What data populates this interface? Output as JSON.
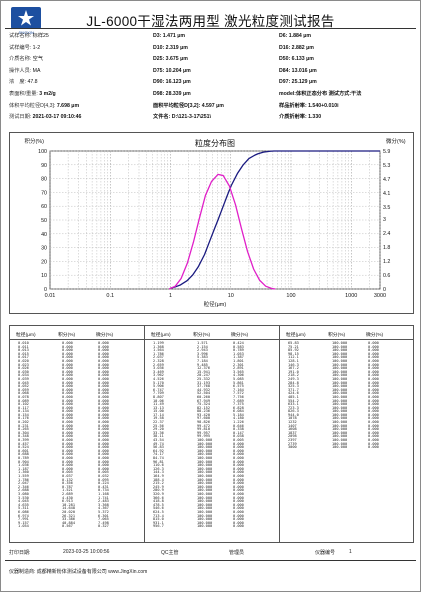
{
  "header": {
    "logo_text": "JINGXIN",
    "title": "JL-6000干湿法两用型 激光粒度测试报告"
  },
  "info": {
    "left": [
      {
        "key": "试样名称:",
        "value": "标样25"
      },
      {
        "key": "试样编号:",
        "value": "1-2"
      },
      {
        "key": "介质名称:",
        "value": "空气"
      },
      {
        "key": "操作人员:",
        "value": "MA"
      },
      {
        "key": "浓　度:",
        "value": "47.8"
      },
      {
        "key": "表面积/重量:",
        "value": "3 m2/g"
      },
      {
        "key": "体积平均粒径D[4,3]:",
        "value": "7.698 μm"
      },
      {
        "key": "测试日期:",
        "value": "2021-03-17 09:10:46"
      }
    ],
    "middle": [
      "D3: 1.471 μm",
      "D10: 2.319 μm",
      "D25: 3.675 μm",
      "D75: 10.204 μm",
      "D90: 16.123 μm",
      "D98: 28.339 μm",
      "面积平均粒径D[3,2]: 4.597 μm",
      "文件名:  D:\\121-3-17\\251\\"
    ],
    "right": [
      "D6: 1.884 μm",
      "D16: 2.882 μm",
      "D50: 6.133 μm",
      "D84: 13.016 μm",
      "D97: 25.129 μm",
      "model:体积正态分布 测试方式:干法",
      "样品折射率: 1.540+0.010i",
      "介质折射率: 1.330"
    ]
  },
  "chart_data": {
    "type": "line",
    "title": "粒度分布图",
    "xlabel": "粒径(μm)",
    "ylabel_left": "积分(%)",
    "ylabel_right": "微分(%)",
    "x_scale": "log",
    "xlim": [
      0.01,
      3000
    ],
    "x_ticks": [
      "0.01",
      "0.1",
      "1",
      "10",
      "100",
      "1000",
      "3000"
    ],
    "y_left_lim": [
      0,
      100
    ],
    "y_left_ticks": [
      "0",
      "10",
      "20",
      "30",
      "40",
      "50",
      "60",
      "70",
      "80",
      "90",
      "100"
    ],
    "y_right_lim": [
      0,
      5.9
    ],
    "y_right_ticks": [
      "0",
      "0.6",
      "1.2",
      "1.8",
      "2.4",
      "3",
      "3.5",
      "4.1",
      "4.7",
      "5.3",
      "5.9"
    ],
    "series": [
      {
        "name": "积分",
        "color": "#1a1a80",
        "x": [
          1.0,
          1.2,
          1.471,
          1.884,
          2.319,
          2.882,
          3.675,
          4.5,
          5.3,
          6.133,
          7.5,
          8.8,
          10.204,
          13.016,
          16.123,
          20.0,
          25.129,
          28.339,
          35.0,
          45.0,
          52.0,
          60.0,
          3000.0
        ],
        "y": [
          0.5,
          1.5,
          3,
          6,
          10,
          16,
          25,
          35,
          43,
          50,
          60,
          68,
          75,
          84,
          90,
          94.5,
          97,
          98,
          99.2,
          99.8,
          100,
          100,
          100
        ]
      },
      {
        "name": "微分",
        "color": "#e020c8",
        "x": [
          0.95,
          1.2,
          1.5,
          1.9,
          2.4,
          3.0,
          3.8,
          4.8,
          6.133,
          7.5,
          9.5,
          12.0,
          15.0,
          19.0,
          24.0,
          30.0,
          38.0,
          48.0,
          55.0
        ],
        "y": [
          0.0,
          0.12,
          0.45,
          1.1,
          2.0,
          3.0,
          4.0,
          4.6,
          4.9,
          4.85,
          4.4,
          3.6,
          2.6,
          1.6,
          0.85,
          0.38,
          0.12,
          0.02,
          0.0
        ]
      }
    ],
    "grid": true
  },
  "table": {
    "headers": [
      "粒径(μm)",
      "积分(%)",
      "微分(%)"
    ],
    "col1": [
      [
        "0.010",
        "0.000",
        "0.000"
      ],
      [
        "0.011",
        "0.000",
        "0.000"
      ],
      [
        "0.013",
        "0.000",
        "0.000"
      ],
      [
        "0.015",
        "0.000",
        "0.000"
      ],
      [
        "0.017",
        "0.000",
        "0.000"
      ],
      [
        "0.020",
        "0.000",
        "0.000"
      ],
      [
        "0.023",
        "0.000",
        "0.000"
      ],
      [
        "0.026",
        "0.000",
        "0.000"
      ],
      [
        "0.030",
        "0.000",
        "0.000"
      ],
      [
        "0.034",
        "0.000",
        "0.000"
      ],
      [
        "0.039",
        "0.000",
        "0.000"
      ],
      [
        "0.045",
        "0.000",
        "0.000"
      ],
      [
        "0.052",
        "0.000",
        "0.000"
      ],
      [
        "0.059",
        "0.000",
        "0.000"
      ],
      [
        "0.068",
        "0.000",
        "0.000"
      ],
      [
        "0.078",
        "0.000",
        "0.000"
      ],
      [
        "0.089",
        "0.000",
        "0.000"
      ],
      [
        "0.102",
        "0.000",
        "0.000"
      ],
      [
        "0.117",
        "0.000",
        "0.000"
      ],
      [
        "0.134",
        "0.000",
        "0.000"
      ],
      [
        "0.154",
        "0.000",
        "0.000"
      ],
      [
        "0.176",
        "0.000",
        "0.000"
      ],
      [
        "0.202",
        "0.000",
        "0.000"
      ],
      [
        "0.231",
        "0.000",
        "0.000"
      ],
      [
        "0.265",
        "0.000",
        "0.000"
      ],
      [
        "0.304",
        "0.000",
        "0.000"
      ],
      [
        "0.348",
        "0.000",
        "0.000"
      ],
      [
        "0.399",
        "0.000",
        "0.000"
      ],
      [
        "0.457",
        "0.000",
        "0.000"
      ],
      [
        "0.524",
        "0.000",
        "0.000"
      ],
      [
        "0.601",
        "0.000",
        "0.000"
      ],
      [
        "0.688",
        "0.000",
        "0.000"
      ],
      [
        "0.789",
        "0.000",
        "0.000"
      ],
      [
        "0.904",
        "0.000",
        "0.000"
      ],
      [
        "1.036",
        "0.000",
        "0.000"
      ],
      [
        "1.187",
        "0.000",
        "0.000"
      ],
      [
        "1.360",
        "0.005",
        "0.005"
      ],
      [
        "1.559",
        "0.037",
        "0.032"
      ],
      [
        "1.786",
        "0.132",
        "0.095"
      ],
      [
        "2.047",
        "0.356",
        "0.224"
      ],
      [
        "2.346",
        "0.787",
        "0.431"
      ],
      [
        "2.688",
        "1.521",
        "0.734"
      ],
      [
        "3.080",
        "2.689",
        "1.168"
      ],
      [
        "3.530",
        "4.430",
        "1.741"
      ],
      [
        "4.045",
        "6.913",
        "2.483"
      ],
      [
        "4.635",
        "10.281",
        "3.368"
      ],
      [
        "5.311",
        "14.648",
        "4.367"
      ],
      [
        "6.086",
        "20.020",
        "5.372"
      ],
      [
        "6.974",
        "26.321",
        "6.301"
      ],
      [
        "7.991",
        "33.386",
        "7.065"
      ],
      [
        "9.157",
        "40.884",
        "7.498"
      ],
      [
        "1.054",
        "0.567",
        "0.327"
      ]
    ],
    "col2": [
      [
        "1.199",
        "1.571",
        "0.424"
      ],
      [
        "1.368",
        "2.154",
        "0.583"
      ],
      [
        "1.564",
        "2.943",
        "0.789"
      ],
      [
        "1.786",
        "3.996",
        "1.053"
      ],
      [
        "2.037",
        "5.383",
        "1.387"
      ],
      [
        "2.328",
        "7.184",
        "1.801"
      ],
      [
        "2.659",
        "9.485",
        "2.301"
      ],
      [
        "3.036",
        "12.376",
        "2.891"
      ],
      [
        "3.469",
        "15.941",
        "3.565"
      ],
      [
        "3.962",
        "20.247",
        "4.306"
      ],
      [
        "4.526",
        "25.332",
        "5.085"
      ],
      [
        "5.170",
        "31.193",
        "5.861"
      ],
      [
        "5.906",
        "37.768",
        "6.575"
      ],
      [
        "6.747",
        "44.932",
        "7.164"
      ],
      [
        "7.709",
        "52.504",
        "7.572"
      ],
      [
        "8.807",
        "60.260",
        "7.756"
      ],
      [
        "10.06",
        "67.949",
        "7.689"
      ],
      [
        "11.49",
        "75.324",
        "7.375"
      ],
      [
        "13.13",
        "82.152",
        "6.828"
      ],
      [
        "15.00",
        "88.236",
        "6.084"
      ],
      [
        "17.14",
        "93.420",
        "5.184"
      ],
      [
        "19.58",
        "97.600",
        "4.180"
      ],
      [
        "22.37",
        "98.826",
        "1.226"
      ],
      [
        "25.56",
        "99.472",
        "0.646"
      ],
      [
        "29.20",
        "99.810",
        "0.338"
      ],
      [
        "33.36",
        "99.957",
        "0.147"
      ],
      [
        "38.11",
        "99.995",
        "0.038"
      ],
      [
        "43.54",
        "100.000",
        "0.005"
      ],
      [
        "49.74",
        "100.000",
        "0.000"
      ],
      [
        "56.83",
        "100.000",
        "0.000"
      ],
      [
        "64.92",
        "100.000",
        "0.000"
      ],
      [
        "74.17",
        "100.000",
        "0.000"
      ],
      [
        "84.74",
        "100.000",
        "0.000"
      ],
      [
        "96.81",
        "100.000",
        "0.000"
      ],
      [
        "110.6",
        "100.000",
        "0.000"
      ],
      [
        "126.3",
        "100.000",
        "0.000"
      ],
      [
        "144.3",
        "100.000",
        "0.000"
      ],
      [
        "164.9",
        "100.000",
        "0.000"
      ],
      [
        "188.4",
        "100.000",
        "0.000"
      ],
      [
        "215.2",
        "100.000",
        "0.000"
      ],
      [
        "245.9",
        "100.000",
        "0.000"
      ],
      [
        "280.9",
        "100.000",
        "0.000"
      ],
      [
        "320.9",
        "100.000",
        "0.000"
      ],
      [
        "366.6",
        "100.000",
        "0.000"
      ],
      [
        "418.8",
        "100.000",
        "0.000"
      ],
      [
        "478.5",
        "100.000",
        "0.000"
      ],
      [
        "546.6",
        "100.000",
        "0.000"
      ],
      [
        "624.5",
        "100.000",
        "0.000"
      ],
      [
        "713.4",
        "100.000",
        "0.000"
      ],
      [
        "815.0",
        "100.000",
        "0.000"
      ],
      [
        "931.1",
        "100.000",
        "0.000"
      ],
      [
        "956.7",
        "100.000",
        "0.000"
      ]
    ],
    "col3": [
      [
        "65.83",
        "100.000",
        "0.000"
      ],
      [
        "75.21",
        "100.000",
        "0.000"
      ],
      [
        "85.92",
        "100.000",
        "0.000"
      ],
      [
        "98.15",
        "100.000",
        "0.000"
      ],
      [
        "112.1",
        "100.000",
        "0.000"
      ],
      [
        "128.1",
        "100.000",
        "0.000"
      ],
      [
        "146.3",
        "100.000",
        "0.000"
      ],
      [
        "167.2",
        "100.000",
        "0.000"
      ],
      [
        "191.0",
        "100.000",
        "0.000"
      ],
      [
        "218.2",
        "100.000",
        "0.000"
      ],
      [
        "249.3",
        "100.000",
        "0.000"
      ],
      [
        "284.8",
        "100.000",
        "0.000"
      ],
      [
        "325.3",
        "100.000",
        "0.000"
      ],
      [
        "371.7",
        "100.000",
        "0.000"
      ],
      [
        "424.6",
        "100.000",
        "0.000"
      ],
      [
        "485.1",
        "100.000",
        "0.000"
      ],
      [
        "554.2",
        "100.000",
        "0.000"
      ],
      [
        "633.1",
        "100.000",
        "0.000"
      ],
      [
        "723.3",
        "100.000",
        "0.000"
      ],
      [
        "826.3",
        "100.000",
        "0.000"
      ],
      [
        "944.0",
        "100.000",
        "0.000"
      ],
      [
        "1078",
        "100.000",
        "0.000"
      ],
      [
        "1232",
        "100.000",
        "0.000"
      ],
      [
        "1407",
        "100.000",
        "0.000"
      ],
      [
        "1608",
        "100.000",
        "0.000"
      ],
      [
        "1837",
        "100.000",
        "0.000"
      ],
      [
        "2098",
        "100.000",
        "0.000"
      ],
      [
        "2397",
        "100.000",
        "0.000"
      ],
      [
        "2739",
        "100.000",
        "0.000"
      ],
      [
        "3000",
        "100.000",
        "0.000"
      ]
    ]
  },
  "footer": {
    "print_date_label": "打印日期:",
    "print_date_value": "2023-03-25 10:00:56",
    "qc_label": "QC主管",
    "admin_label": "管理员",
    "instrument_label": "仪器编号",
    "instrument_value": "1",
    "maker": "仪器制造商: 成都精新粉体测试设备有限公司  www.JingXin.com"
  }
}
